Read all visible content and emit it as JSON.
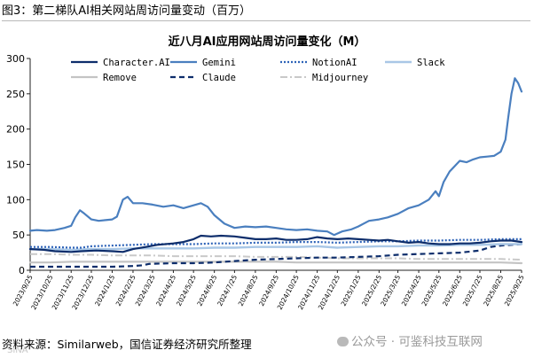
{
  "figure_caption": "图3：第二梯队AI相关网站周访问量变动（百万）",
  "source_note": "资料来源：Similarweb，国信证券经济研究所整理",
  "watermark": {
    "text": "公众号 · 可鉴科技互联网",
    "icon": "wechat-icon"
  },
  "ghost_mark": "SINA",
  "colors": {
    "dark_blue": "#0d2d6b",
    "mid_blue": "#4a7fbf",
    "light_blue": "#a9c7e6",
    "gray": "#bfbfbf",
    "light_gray": "#c9c9c9",
    "axis": "#222222"
  },
  "chart_data": {
    "type": "line",
    "title": "近八月AI应用网站周访问量变化（M）",
    "xlabel": "",
    "ylabel": "",
    "ylim": [
      0,
      300
    ],
    "yticks": [
      0,
      50,
      100,
      150,
      200,
      250,
      300
    ],
    "grid": false,
    "legend_position": "top",
    "x_range": [
      "2023/9/25",
      "2025/9/25"
    ],
    "x_tick_labels": [
      "2023/9/25",
      "2023/10/25",
      "2023/11/25",
      "2023/12/25",
      "2024/1/25",
      "2024/2/25",
      "2024/3/25",
      "2024/4/25",
      "2024/5/25",
      "2024/6/25",
      "2024/7/25",
      "2024/8/25",
      "2024/9/25",
      "2024/10/25",
      "2024/11/25",
      "2024/12/25",
      "2025/1/25",
      "2025/2/25",
      "2025/3/25",
      "2025/4/25",
      "2025/5/25",
      "2025/6/25",
      "2025/7/25",
      "2025/8/25",
      "2025/9/25"
    ],
    "series": [
      {
        "name": "Character.AI",
        "color": "#0d2d6b",
        "style": "solid",
        "width": 2.2,
        "points": [
          [
            "2023/9/25",
            30
          ],
          [
            "2023/10/15",
            29
          ],
          [
            "2023/11/1",
            27
          ],
          [
            "2023/11/25",
            26
          ],
          [
            "2023/12/10",
            27
          ],
          [
            "2024/1/1",
            28
          ],
          [
            "2024/1/25",
            27
          ],
          [
            "2024/2/10",
            26
          ],
          [
            "2024/2/25",
            30
          ],
          [
            "2024/3/15",
            33
          ],
          [
            "2024/4/1",
            36
          ],
          [
            "2024/4/25",
            38
          ],
          [
            "2024/5/10",
            40
          ],
          [
            "2024/5/25",
            44
          ],
          [
            "2024/6/5",
            49
          ],
          [
            "2024/6/20",
            48
          ],
          [
            "2024/7/5",
            49
          ],
          [
            "2024/7/25",
            48
          ],
          [
            "2024/8/10",
            46
          ],
          [
            "2024/8/25",
            44
          ],
          [
            "2024/9/10",
            44
          ],
          [
            "2024/9/25",
            45
          ],
          [
            "2024/10/10",
            43
          ],
          [
            "2024/10/25",
            43
          ],
          [
            "2024/11/10",
            44
          ],
          [
            "2024/11/25",
            47
          ],
          [
            "2024/12/10",
            45
          ],
          [
            "2024/12/25",
            44
          ],
          [
            "2025/1/10",
            45
          ],
          [
            "2025/1/25",
            44
          ],
          [
            "2025/2/10",
            43
          ],
          [
            "2025/2/25",
            42
          ],
          [
            "2025/3/10",
            43
          ],
          [
            "2025/3/25",
            41
          ],
          [
            "2025/4/10",
            39
          ],
          [
            "2025/4/25",
            40
          ],
          [
            "2025/5/10",
            38
          ],
          [
            "2025/5/25",
            37
          ],
          [
            "2025/6/10",
            37
          ],
          [
            "2025/6/25",
            38
          ],
          [
            "2025/7/10",
            38
          ],
          [
            "2025/7/25",
            39
          ],
          [
            "2025/8/10",
            41
          ],
          [
            "2025/8/25",
            42
          ],
          [
            "2025/9/10",
            42
          ],
          [
            "2025/9/25",
            40
          ]
        ]
      },
      {
        "name": "Gemini",
        "color": "#4a7fbf",
        "style": "solid",
        "width": 2.2,
        "points": [
          [
            "2023/9/25",
            56
          ],
          [
            "2023/10/5",
            57
          ],
          [
            "2023/10/20",
            56
          ],
          [
            "2023/11/1",
            57
          ],
          [
            "2023/11/15",
            60
          ],
          [
            "2023/11/25",
            63
          ],
          [
            "2023/12/1",
            75
          ],
          [
            "2023/12/8",
            85
          ],
          [
            "2023/12/15",
            80
          ],
          [
            "2023/12/25",
            72
          ],
          [
            "2024/1/5",
            70
          ],
          [
            "2024/1/15",
            71
          ],
          [
            "2024/1/25",
            72
          ],
          [
            "2024/2/1",
            76
          ],
          [
            "2024/2/10",
            100
          ],
          [
            "2024/2/17",
            104
          ],
          [
            "2024/2/25",
            95
          ],
          [
            "2024/3/10",
            95
          ],
          [
            "2024/3/25",
            93
          ],
          [
            "2024/4/10",
            90
          ],
          [
            "2024/4/25",
            92
          ],
          [
            "2024/5/10",
            88
          ],
          [
            "2024/5/25",
            92
          ],
          [
            "2024/6/5",
            95
          ],
          [
            "2024/6/15",
            90
          ],
          [
            "2024/6/25",
            78
          ],
          [
            "2024/7/10",
            66
          ],
          [
            "2024/7/25",
            60
          ],
          [
            "2024/8/10",
            62
          ],
          [
            "2024/8/25",
            61
          ],
          [
            "2024/9/10",
            62
          ],
          [
            "2024/9/25",
            60
          ],
          [
            "2024/10/10",
            58
          ],
          [
            "2024/10/25",
            57
          ],
          [
            "2024/11/10",
            58
          ],
          [
            "2024/11/25",
            56
          ],
          [
            "2024/12/10",
            55
          ],
          [
            "2024/12/20",
            50
          ],
          [
            "2025/1/1",
            55
          ],
          [
            "2025/1/15",
            58
          ],
          [
            "2025/1/25",
            62
          ],
          [
            "2025/2/10",
            70
          ],
          [
            "2025/2/25",
            72
          ],
          [
            "2025/3/10",
            75
          ],
          [
            "2025/3/25",
            80
          ],
          [
            "2025/4/10",
            88
          ],
          [
            "2025/4/25",
            92
          ],
          [
            "2025/5/10",
            100
          ],
          [
            "2025/5/20",
            112
          ],
          [
            "2025/5/25",
            105
          ],
          [
            "2025/6/1",
            125
          ],
          [
            "2025/6/10",
            140
          ],
          [
            "2025/6/20",
            150
          ],
          [
            "2025/6/25",
            155
          ],
          [
            "2025/7/5",
            153
          ],
          [
            "2025/7/15",
            157
          ],
          [
            "2025/7/25",
            160
          ],
          [
            "2025/8/5",
            161
          ],
          [
            "2025/8/15",
            162
          ],
          [
            "2025/8/25",
            168
          ],
          [
            "2025/9/1",
            185
          ],
          [
            "2025/9/5",
            215
          ],
          [
            "2025/9/10",
            250
          ],
          [
            "2025/9/15",
            272
          ],
          [
            "2025/9/20",
            265
          ],
          [
            "2025/9/25",
            253
          ]
        ]
      },
      {
        "name": "NotionAI",
        "color": "#2e63b8",
        "style": "dotted",
        "width": 2.2,
        "points": [
          [
            "2023/9/25",
            33
          ],
          [
            "2023/10/25",
            33
          ],
          [
            "2023/11/25",
            32
          ],
          [
            "2023/12/10",
            32
          ],
          [
            "2023/12/25",
            34
          ],
          [
            "2024/1/25",
            35
          ],
          [
            "2024/2/25",
            36
          ],
          [
            "2024/3/25",
            37
          ],
          [
            "2024/4/25",
            37
          ],
          [
            "2024/5/25",
            37
          ],
          [
            "2024/6/25",
            38
          ],
          [
            "2024/7/25",
            38
          ],
          [
            "2024/8/25",
            39
          ],
          [
            "2024/9/25",
            39
          ],
          [
            "2024/10/25",
            40
          ],
          [
            "2024/11/25",
            40
          ],
          [
            "2024/12/25",
            39
          ],
          [
            "2025/1/25",
            40
          ],
          [
            "2025/2/25",
            41
          ],
          [
            "2025/3/25",
            41
          ],
          [
            "2025/4/25",
            42
          ],
          [
            "2025/5/25",
            42
          ],
          [
            "2025/6/25",
            43
          ],
          [
            "2025/7/25",
            43
          ],
          [
            "2025/8/25",
            44
          ],
          [
            "2025/9/25",
            44
          ]
        ]
      },
      {
        "name": "Slack",
        "color": "#a9c7e6",
        "style": "solid",
        "width": 2.4,
        "points": [
          [
            "2023/9/25",
            30
          ],
          [
            "2023/10/25",
            30
          ],
          [
            "2023/11/25",
            29
          ],
          [
            "2023/12/25",
            30
          ],
          [
            "2024/1/25",
            30
          ],
          [
            "2024/2/25",
            31
          ],
          [
            "2024/3/25",
            31
          ],
          [
            "2024/4/25",
            31
          ],
          [
            "2024/5/25",
            31
          ],
          [
            "2024/6/25",
            32
          ],
          [
            "2024/7/25",
            32
          ],
          [
            "2024/8/25",
            33
          ],
          [
            "2024/9/25",
            33
          ],
          [
            "2024/10/25",
            33
          ],
          [
            "2024/11/25",
            34
          ],
          [
            "2024/12/25",
            32
          ],
          [
            "2025/1/25",
            33
          ],
          [
            "2025/2/25",
            34
          ],
          [
            "2025/3/25",
            34
          ],
          [
            "2025/4/25",
            35
          ],
          [
            "2025/5/25",
            35
          ],
          [
            "2025/6/25",
            36
          ],
          [
            "2025/7/25",
            36
          ],
          [
            "2025/8/25",
            37
          ],
          [
            "2025/9/25",
            37
          ]
        ]
      },
      {
        "name": "Remove",
        "color": "#c4c4c4",
        "style": "solid",
        "width": 2.2,
        "points": [
          [
            "2023/9/25",
            11
          ],
          [
            "2023/10/25",
            11
          ],
          [
            "2023/11/25",
            12
          ],
          [
            "2023/12/25",
            12
          ],
          [
            "2024/1/25",
            12
          ],
          [
            "2024/2/25",
            12
          ],
          [
            "2024/3/25",
            12
          ],
          [
            "2024/4/25",
            12
          ],
          [
            "2024/5/25",
            12
          ],
          [
            "2024/6/25",
            12
          ],
          [
            "2024/7/25",
            12
          ],
          [
            "2024/8/25",
            12
          ],
          [
            "2024/9/25",
            12
          ],
          [
            "2024/10/25",
            11
          ],
          [
            "2024/11/25",
            11
          ],
          [
            "2024/12/25",
            11
          ],
          [
            "2025/1/25",
            11
          ],
          [
            "2025/2/25",
            11
          ],
          [
            "2025/3/25",
            11
          ],
          [
            "2025/4/25",
            11
          ],
          [
            "2025/5/25",
            11
          ],
          [
            "2025/6/25",
            11
          ],
          [
            "2025/7/25",
            11
          ],
          [
            "2025/8/25",
            11
          ],
          [
            "2025/9/25",
            10
          ]
        ]
      },
      {
        "name": "Claude",
        "color": "#0d2d6b",
        "style": "dashed",
        "width": 2.2,
        "points": [
          [
            "2023/9/25",
            5
          ],
          [
            "2023/10/25",
            5
          ],
          [
            "2023/11/25",
            5
          ],
          [
            "2023/12/25",
            5
          ],
          [
            "2024/1/25",
            5
          ],
          [
            "2024/2/25",
            6
          ],
          [
            "2024/3/10",
            7
          ],
          [
            "2024/3/20",
            9
          ],
          [
            "2024/4/25",
            10
          ],
          [
            "2024/5/25",
            10
          ],
          [
            "2024/6/25",
            11
          ],
          [
            "2024/7/25",
            13
          ],
          [
            "2024/8/25",
            15
          ],
          [
            "2024/9/25",
            16
          ],
          [
            "2024/10/25",
            17
          ],
          [
            "2024/11/25",
            18
          ],
          [
            "2024/12/25",
            18
          ],
          [
            "2025/1/25",
            19
          ],
          [
            "2025/2/25",
            20
          ],
          [
            "2025/3/25",
            22
          ],
          [
            "2025/4/25",
            23
          ],
          [
            "2025/5/25",
            24
          ],
          [
            "2025/6/25",
            25
          ],
          [
            "2025/7/25",
            28
          ],
          [
            "2025/8/10",
            33
          ],
          [
            "2025/8/25",
            35
          ],
          [
            "2025/9/10",
            36
          ],
          [
            "2025/9/25",
            37
          ]
        ]
      },
      {
        "name": "Midjourney",
        "color": "#c9c9c9",
        "style": "dashdot",
        "width": 2.0,
        "points": [
          [
            "2023/9/25",
            23
          ],
          [
            "2023/10/25",
            23
          ],
          [
            "2023/11/25",
            22
          ],
          [
            "2023/12/25",
            22
          ],
          [
            "2024/1/25",
            21
          ],
          [
            "2024/2/25",
            21
          ],
          [
            "2024/3/25",
            21
          ],
          [
            "2024/4/25",
            20
          ],
          [
            "2024/5/25",
            20
          ],
          [
            "2024/6/25",
            20
          ],
          [
            "2024/7/25",
            20
          ],
          [
            "2024/8/25",
            19
          ],
          [
            "2024/9/25",
            19
          ],
          [
            "2024/10/25",
            19
          ],
          [
            "2024/11/25",
            18
          ],
          [
            "2024/12/25",
            17
          ],
          [
            "2025/1/25",
            17
          ],
          [
            "2025/2/25",
            17
          ],
          [
            "2025/3/25",
            17
          ],
          [
            "2025/4/25",
            16
          ],
          [
            "2025/5/25",
            16
          ],
          [
            "2025/6/25",
            16
          ],
          [
            "2025/7/25",
            16
          ],
          [
            "2025/8/25",
            16
          ],
          [
            "2025/9/25",
            15
          ]
        ]
      }
    ]
  }
}
